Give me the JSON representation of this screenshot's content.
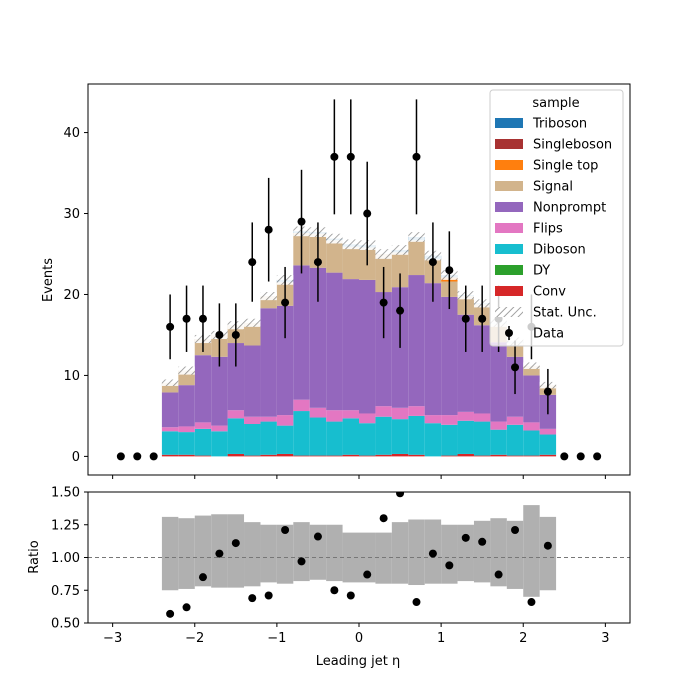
{
  "chart_data": [
    {
      "panel": "main",
      "type": "stacked-step-histogram",
      "ylabel": "Events",
      "ylim": [
        -2.3,
        46
      ],
      "yticks": [
        0,
        10,
        20,
        30,
        40
      ],
      "xlim": [
        -3.3,
        3.3
      ],
      "bin_edges": [
        -2.4,
        -2.2,
        -2.0,
        -1.8,
        -1.6,
        -1.4,
        -1.2,
        -1.0,
        -0.8,
        -0.6,
        -0.4,
        -0.2,
        0.0,
        0.2,
        0.4,
        0.6,
        0.8,
        1.0,
        1.2,
        1.4,
        1.6,
        1.8,
        2.0,
        2.2,
        2.4
      ],
      "stack_order": [
        "Conv",
        "DY",
        "Diboson",
        "Flips",
        "Nonprompt",
        "Signal",
        "Single top",
        "Singleboson",
        "Triboson"
      ],
      "series": [
        {
          "name": "Conv",
          "color": "#d62728",
          "values": [
            0.2,
            0.2,
            0.1,
            0.0,
            0.3,
            0.1,
            0.2,
            0.3,
            0.1,
            0.1,
            0.1,
            0.2,
            0.1,
            0.2,
            0.3,
            0.2,
            0.0,
            0.1,
            0.3,
            0.1,
            0.2,
            0.1,
            0.1,
            0.2
          ]
        },
        {
          "name": "DY",
          "color": "#2ca02c",
          "values": [
            0.0,
            0.0,
            0.0,
            0.0,
            0.0,
            0.0,
            0.0,
            0.0,
            0.0,
            0.0,
            0.0,
            0.0,
            0.0,
            0.0,
            0.0,
            0.0,
            0.0,
            0.0,
            0.0,
            0.0,
            0.0,
            0.0,
            0.0,
            0.0
          ]
        },
        {
          "name": "Diboson",
          "color": "#17becf",
          "values": [
            2.9,
            2.8,
            3.3,
            3.1,
            4.4,
            3.9,
            4.1,
            3.5,
            5.5,
            4.7,
            4.2,
            4.5,
            4.0,
            4.7,
            4.3,
            4.8,
            4.1,
            3.8,
            4.1,
            4.2,
            3.1,
            3.8,
            3.1,
            2.5
          ]
        },
        {
          "name": "Flips",
          "color": "#e377c2",
          "values": [
            0.5,
            0.7,
            0.8,
            0.7,
            1.0,
            0.9,
            0.6,
            1.3,
            1.4,
            1.2,
            1.4,
            1.0,
            1.2,
            1.3,
            1.4,
            1.2,
            1.0,
            1.2,
            1.1,
            1.0,
            1.0,
            1.0,
            1.0,
            0.7
          ]
        },
        {
          "name": "Nonprompt",
          "color": "#9467bd",
          "values": [
            4.3,
            5.1,
            8.3,
            8.5,
            8.3,
            8.8,
            13.4,
            13.5,
            16.6,
            17.3,
            17.0,
            16.2,
            16.5,
            14.1,
            14.9,
            16.2,
            16.3,
            14.6,
            12.0,
            10.9,
            9.8,
            7.4,
            5.8,
            4.2
          ]
        },
        {
          "name": "Signal",
          "color": "#d2b48c",
          "values": [
            1.2,
            1.8,
            2.0,
            2.7,
            2.2,
            2.8,
            1.5,
            2.9,
            4.0,
            4.2,
            4.0,
            4.0,
            4.0,
            4.7,
            4.3,
            4.3,
            3.0,
            1.9,
            2.3,
            2.6,
            2.3,
            1.7,
            1.2,
            1.2
          ]
        },
        {
          "name": "Single top",
          "color": "#ff7f0e",
          "values": [
            0.0,
            0.0,
            0.0,
            0.0,
            0.0,
            0.0,
            0.0,
            0.0,
            0.0,
            0.0,
            0.0,
            0.0,
            0.0,
            0.0,
            0.0,
            0.0,
            0.0,
            0.5,
            0.0,
            0.0,
            0.0,
            0.0,
            0.0,
            0.0
          ]
        },
        {
          "name": "Singleboson",
          "color": "#a83232",
          "values": [
            0.0,
            0.0,
            0.0,
            0.0,
            0.0,
            0.0,
            0.0,
            0.0,
            0.0,
            0.0,
            0.0,
            0.0,
            0.0,
            0.0,
            0.0,
            0.0,
            0.0,
            0.0,
            0.0,
            0.0,
            0.0,
            0.0,
            0.0,
            0.0
          ]
        },
        {
          "name": "Triboson",
          "color": "#1f77b4",
          "values": [
            0.0,
            0.0,
            0.0,
            0.0,
            0.0,
            0.0,
            0.0,
            0.3,
            0.2,
            0.2,
            0.2,
            0.3,
            0.3,
            0.0,
            0.3,
            0.4,
            0.4,
            0.3,
            0.1,
            0.1,
            0.1,
            0.2,
            0.0,
            0.0
          ]
        }
      ],
      "stat_unc": {
        "name": "Stat. Unc.",
        "values": [
          0.4,
          0.5,
          0.5,
          0.5,
          0.5,
          0.5,
          0.5,
          0.6,
          0.6,
          0.6,
          0.6,
          0.6,
          0.6,
          0.6,
          0.6,
          0.6,
          0.6,
          0.6,
          0.5,
          0.5,
          0.5,
          0.5,
          0.4,
          0.4
        ]
      },
      "data": {
        "name": "Data",
        "x": [
          -2.9,
          -2.7,
          -2.5,
          -2.3,
          -2.1,
          -1.9,
          -1.7,
          -1.5,
          -1.3,
          -1.1,
          -0.9,
          -0.7,
          -0.5,
          -0.3,
          -0.1,
          0.1,
          0.3,
          0.5,
          0.7,
          0.9,
          1.1,
          1.3,
          1.5,
          1.7,
          1.9,
          2.1,
          2.3,
          2.5,
          2.7,
          2.9
        ],
        "y": [
          0,
          0,
          0,
          16,
          17,
          17,
          15,
          15,
          24,
          28,
          19,
          29,
          24,
          37,
          37,
          30,
          19,
          18,
          37,
          24,
          23,
          17,
          17,
          17,
          11,
          16,
          8,
          0,
          0,
          0
        ],
        "err": [
          0,
          0,
          0,
          4.0,
          4.1,
          4.1,
          3.9,
          3.9,
          4.9,
          6.4,
          4.4,
          6.4,
          4.9,
          7.1,
          7.1,
          6.4,
          4.4,
          4.6,
          7.1,
          4.9,
          4.8,
          4.1,
          4.1,
          4.1,
          3.3,
          4.0,
          2.8,
          0,
          0,
          0
        ]
      },
      "legend": {
        "title": "sample",
        "placement": "upper right",
        "entries": [
          "Triboson",
          "Singleboson",
          "Single top",
          "Signal",
          "Nonprompt",
          "Flips",
          "Diboson",
          "DY",
          "Conv",
          "Stat. Unc.",
          "Data"
        ]
      }
    },
    {
      "panel": "ratio",
      "type": "ratio",
      "ylabel": "Ratio",
      "xlabel": "Leading jet  η",
      "ylim": [
        0.5,
        1.5
      ],
      "yticks": [
        "0.50",
        "0.75",
        "1.00",
        "1.25",
        "1.50"
      ],
      "xlim": [
        -3.3,
        3.3
      ],
      "xticks": [
        "−3",
        "−2",
        "−1",
        "0",
        "1",
        "2",
        "3"
      ],
      "reference_line": 1.0,
      "unc_band": {
        "color": "#b0b0b0",
        "lo": [
          0.75,
          0.76,
          0.78,
          0.77,
          0.77,
          0.78,
          0.81,
          0.8,
          0.82,
          0.83,
          0.82,
          0.81,
          0.81,
          0.8,
          0.8,
          0.79,
          0.8,
          0.8,
          0.82,
          0.81,
          0.78,
          0.76,
          0.7,
          0.75
        ],
        "hi": [
          1.31,
          1.3,
          1.32,
          1.33,
          1.33,
          1.27,
          1.25,
          1.25,
          1.27,
          1.25,
          1.25,
          1.19,
          1.19,
          1.19,
          1.27,
          1.29,
          1.29,
          1.25,
          1.25,
          1.28,
          1.3,
          1.28,
          1.4,
          1.31
        ]
      },
      "points": {
        "x": [
          -2.3,
          -2.1,
          -1.9,
          -1.7,
          -1.5,
          -1.3,
          -1.1,
          -0.9,
          -0.7,
          -0.5,
          -0.3,
          -0.1,
          0.1,
          0.3,
          0.5,
          0.7,
          0.9,
          1.1,
          1.3,
          1.5,
          1.7,
          1.9,
          2.1,
          2.3
        ],
        "y": [
          0.57,
          0.62,
          0.85,
          1.03,
          1.11,
          0.69,
          0.71,
          1.21,
          0.97,
          1.16,
          0.75,
          0.71,
          0.87,
          1.3,
          1.49,
          0.66,
          1.03,
          0.94,
          1.15,
          1.12,
          0.87,
          1.21,
          0.66,
          1.09
        ]
      }
    }
  ]
}
